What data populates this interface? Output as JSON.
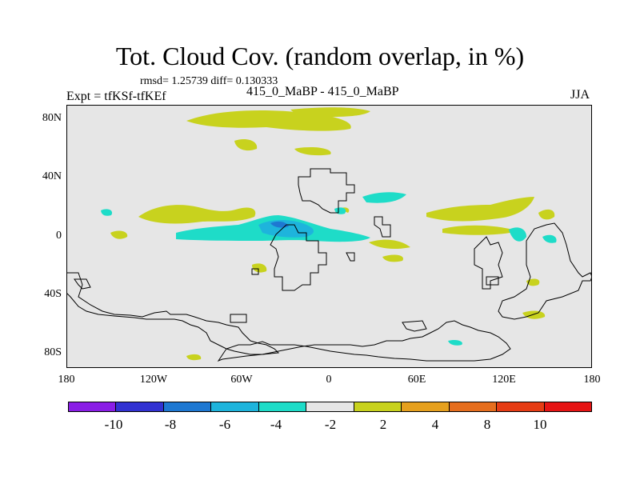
{
  "header": {
    "title": "Tot. Cloud Cov. (random overlap, in %)",
    "stats": "rmsd= 1.25739 diff= 0.130333",
    "subtitle": "415_0_MaBP - 415_0_MaBP",
    "expt": "Expt = tfKSf-tfKEf",
    "season": "JJA"
  },
  "axes": {
    "y_labels": [
      "80N",
      "40N",
      "0",
      "40S",
      "80S"
    ],
    "x_labels": [
      "180",
      "120W",
      "60W",
      "0",
      "60E",
      "120E",
      "180"
    ]
  },
  "colorbar": {
    "colors": [
      "#8a1ee6",
      "#3232d2",
      "#1e78d2",
      "#1eb4dc",
      "#1edcc8",
      "#e6e6e6",
      "#c8d21e",
      "#e6a01e",
      "#e66e1e",
      "#e63c14",
      "#e61414"
    ],
    "labels": [
      "-10",
      "-8",
      "-6",
      "-4",
      "-2",
      "2",
      "4",
      "8",
      "10"
    ]
  }
}
